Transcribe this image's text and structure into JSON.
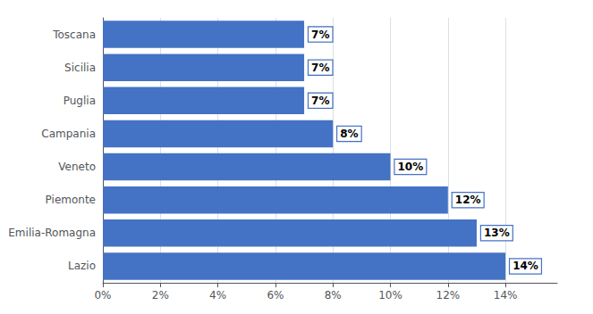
{
  "chart_data": {
    "type": "bar",
    "orientation": "horizontal",
    "categories": [
      "Lazio",
      "Emilia-Romagna",
      "Piemonte",
      "Veneto",
      "Campania",
      "Puglia",
      "Sicilia",
      "Toscana"
    ],
    "values": [
      0.14,
      0.13,
      0.12,
      0.1,
      0.08,
      0.07,
      0.07,
      0.07
    ],
    "value_labels": [
      "14%",
      "13%",
      "12%",
      "10%",
      "8%",
      "7%",
      "7%",
      "7%"
    ],
    "data_labels": true,
    "color": "#4472C4",
    "xlim": [
      0,
      0.158
    ],
    "xticks": [
      {
        "value": 0,
        "label": "0%"
      },
      {
        "value": 0.02,
        "label": "2%"
      },
      {
        "value": 0.04,
        "label": "4%"
      },
      {
        "value": 0.06,
        "label": "6%"
      },
      {
        "value": 0.08,
        "label": "8%"
      },
      {
        "value": 0.1,
        "label": "10%"
      },
      {
        "value": 0.12,
        "label": "12%"
      },
      {
        "value": 0.14,
        "label": "14%"
      }
    ],
    "grid": true
  }
}
